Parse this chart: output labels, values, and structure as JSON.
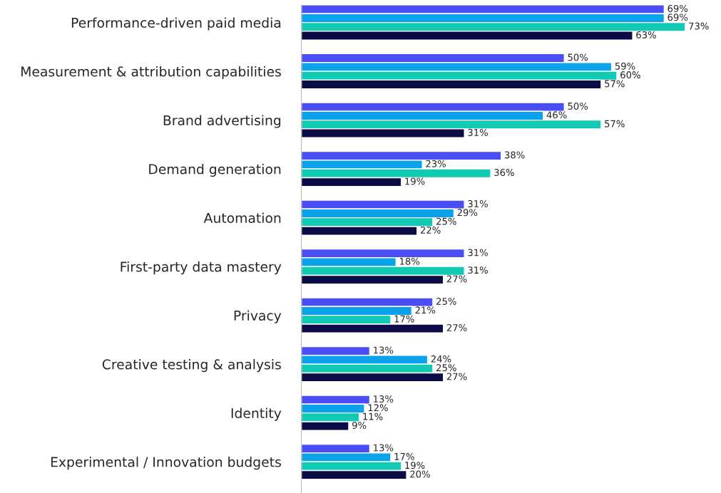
{
  "chart_data": {
    "type": "bar",
    "orientation": "horizontal",
    "grid": false,
    "categories": [
      "Performance-driven paid media",
      "Measurement & attribution capabilities",
      "Brand advertising",
      "Demand generation",
      "Automation",
      "First-party data mastery",
      "Privacy",
      "Creative testing & analysis",
      "Identity",
      "Experimental / Innovation budgets"
    ],
    "series": [
      {
        "color": "#4b4ef5",
        "values": [
          69,
          50,
          50,
          38,
          31,
          31,
          25,
          13,
          13,
          13
        ],
        "value_labels": [
          "69%",
          "50%",
          "50%",
          "38%",
          "31%",
          "31%",
          "25%",
          "13%",
          "13%",
          "13%"
        ]
      },
      {
        "color": "#0ba2ec",
        "values": [
          69,
          59,
          46,
          23,
          29,
          18,
          21,
          24,
          12,
          17
        ],
        "value_labels": [
          "69%",
          "59%",
          "46%",
          "23%",
          "29%",
          "18%",
          "21%",
          "24%",
          "12%",
          "17%"
        ]
      },
      {
        "color": "#12c9b4",
        "values": [
          73,
          60,
          57,
          36,
          25,
          31,
          17,
          25,
          11,
          19
        ],
        "value_labels": [
          "73%",
          "60%",
          "57%",
          "36%",
          "25%",
          "31%",
          "17%",
          "25%",
          "11%",
          "19%"
        ]
      },
      {
        "color": "#0b0b45",
        "values": [
          63,
          57,
          31,
          19,
          22,
          27,
          27,
          27,
          9,
          20
        ],
        "value_labels": [
          "63%",
          "57%",
          "31%",
          "19%",
          "22%",
          "27%",
          "27%",
          "27%",
          "9%",
          "20%"
        ]
      }
    ]
  }
}
